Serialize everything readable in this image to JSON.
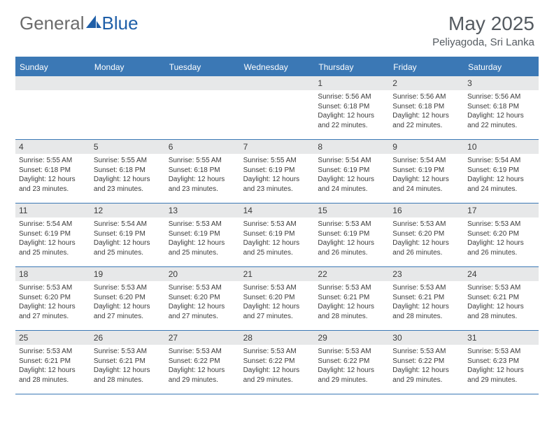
{
  "brand": {
    "part1": "General",
    "part2": "Blue"
  },
  "colors": {
    "accent": "#3b78b5",
    "header_bg": "#3b78b5",
    "date_bg": "#e7e8e9",
    "text": "#3b3b3b",
    "title": "#555b61",
    "logo_gray": "#6b6b6b"
  },
  "title": "May 2025",
  "location": "Peliyagoda, Sri Lanka",
  "day_names": [
    "Sunday",
    "Monday",
    "Tuesday",
    "Wednesday",
    "Thursday",
    "Friday",
    "Saturday"
  ],
  "weeks": [
    [
      {
        "blank": true
      },
      {
        "blank": true
      },
      {
        "blank": true
      },
      {
        "blank": true
      },
      {
        "date": "1",
        "sunrise": "5:56 AM",
        "sunset": "6:18 PM",
        "daylight": "12 hours and 22 minutes."
      },
      {
        "date": "2",
        "sunrise": "5:56 AM",
        "sunset": "6:18 PM",
        "daylight": "12 hours and 22 minutes."
      },
      {
        "date": "3",
        "sunrise": "5:56 AM",
        "sunset": "6:18 PM",
        "daylight": "12 hours and 22 minutes."
      }
    ],
    [
      {
        "date": "4",
        "sunrise": "5:55 AM",
        "sunset": "6:18 PM",
        "daylight": "12 hours and 23 minutes."
      },
      {
        "date": "5",
        "sunrise": "5:55 AM",
        "sunset": "6:18 PM",
        "daylight": "12 hours and 23 minutes."
      },
      {
        "date": "6",
        "sunrise": "5:55 AM",
        "sunset": "6:18 PM",
        "daylight": "12 hours and 23 minutes."
      },
      {
        "date": "7",
        "sunrise": "5:55 AM",
        "sunset": "6:19 PM",
        "daylight": "12 hours and 23 minutes."
      },
      {
        "date": "8",
        "sunrise": "5:54 AM",
        "sunset": "6:19 PM",
        "daylight": "12 hours and 24 minutes."
      },
      {
        "date": "9",
        "sunrise": "5:54 AM",
        "sunset": "6:19 PM",
        "daylight": "12 hours and 24 minutes."
      },
      {
        "date": "10",
        "sunrise": "5:54 AM",
        "sunset": "6:19 PM",
        "daylight": "12 hours and 24 minutes."
      }
    ],
    [
      {
        "date": "11",
        "sunrise": "5:54 AM",
        "sunset": "6:19 PM",
        "daylight": "12 hours and 25 minutes."
      },
      {
        "date": "12",
        "sunrise": "5:54 AM",
        "sunset": "6:19 PM",
        "daylight": "12 hours and 25 minutes."
      },
      {
        "date": "13",
        "sunrise": "5:53 AM",
        "sunset": "6:19 PM",
        "daylight": "12 hours and 25 minutes."
      },
      {
        "date": "14",
        "sunrise": "5:53 AM",
        "sunset": "6:19 PM",
        "daylight": "12 hours and 25 minutes."
      },
      {
        "date": "15",
        "sunrise": "5:53 AM",
        "sunset": "6:19 PM",
        "daylight": "12 hours and 26 minutes."
      },
      {
        "date": "16",
        "sunrise": "5:53 AM",
        "sunset": "6:20 PM",
        "daylight": "12 hours and 26 minutes."
      },
      {
        "date": "17",
        "sunrise": "5:53 AM",
        "sunset": "6:20 PM",
        "daylight": "12 hours and 26 minutes."
      }
    ],
    [
      {
        "date": "18",
        "sunrise": "5:53 AM",
        "sunset": "6:20 PM",
        "daylight": "12 hours and 27 minutes."
      },
      {
        "date": "19",
        "sunrise": "5:53 AM",
        "sunset": "6:20 PM",
        "daylight": "12 hours and 27 minutes."
      },
      {
        "date": "20",
        "sunrise": "5:53 AM",
        "sunset": "6:20 PM",
        "daylight": "12 hours and 27 minutes."
      },
      {
        "date": "21",
        "sunrise": "5:53 AM",
        "sunset": "6:20 PM",
        "daylight": "12 hours and 27 minutes."
      },
      {
        "date": "22",
        "sunrise": "5:53 AM",
        "sunset": "6:21 PM",
        "daylight": "12 hours and 28 minutes."
      },
      {
        "date": "23",
        "sunrise": "5:53 AM",
        "sunset": "6:21 PM",
        "daylight": "12 hours and 28 minutes."
      },
      {
        "date": "24",
        "sunrise": "5:53 AM",
        "sunset": "6:21 PM",
        "daylight": "12 hours and 28 minutes."
      }
    ],
    [
      {
        "date": "25",
        "sunrise": "5:53 AM",
        "sunset": "6:21 PM",
        "daylight": "12 hours and 28 minutes."
      },
      {
        "date": "26",
        "sunrise": "5:53 AM",
        "sunset": "6:21 PM",
        "daylight": "12 hours and 28 minutes."
      },
      {
        "date": "27",
        "sunrise": "5:53 AM",
        "sunset": "6:22 PM",
        "daylight": "12 hours and 29 minutes."
      },
      {
        "date": "28",
        "sunrise": "5:53 AM",
        "sunset": "6:22 PM",
        "daylight": "12 hours and 29 minutes."
      },
      {
        "date": "29",
        "sunrise": "5:53 AM",
        "sunset": "6:22 PM",
        "daylight": "12 hours and 29 minutes."
      },
      {
        "date": "30",
        "sunrise": "5:53 AM",
        "sunset": "6:22 PM",
        "daylight": "12 hours and 29 minutes."
      },
      {
        "date": "31",
        "sunrise": "5:53 AM",
        "sunset": "6:23 PM",
        "daylight": "12 hours and 29 minutes."
      }
    ]
  ],
  "labels": {
    "sunrise": "Sunrise:",
    "sunset": "Sunset:",
    "daylight": "Daylight:"
  }
}
